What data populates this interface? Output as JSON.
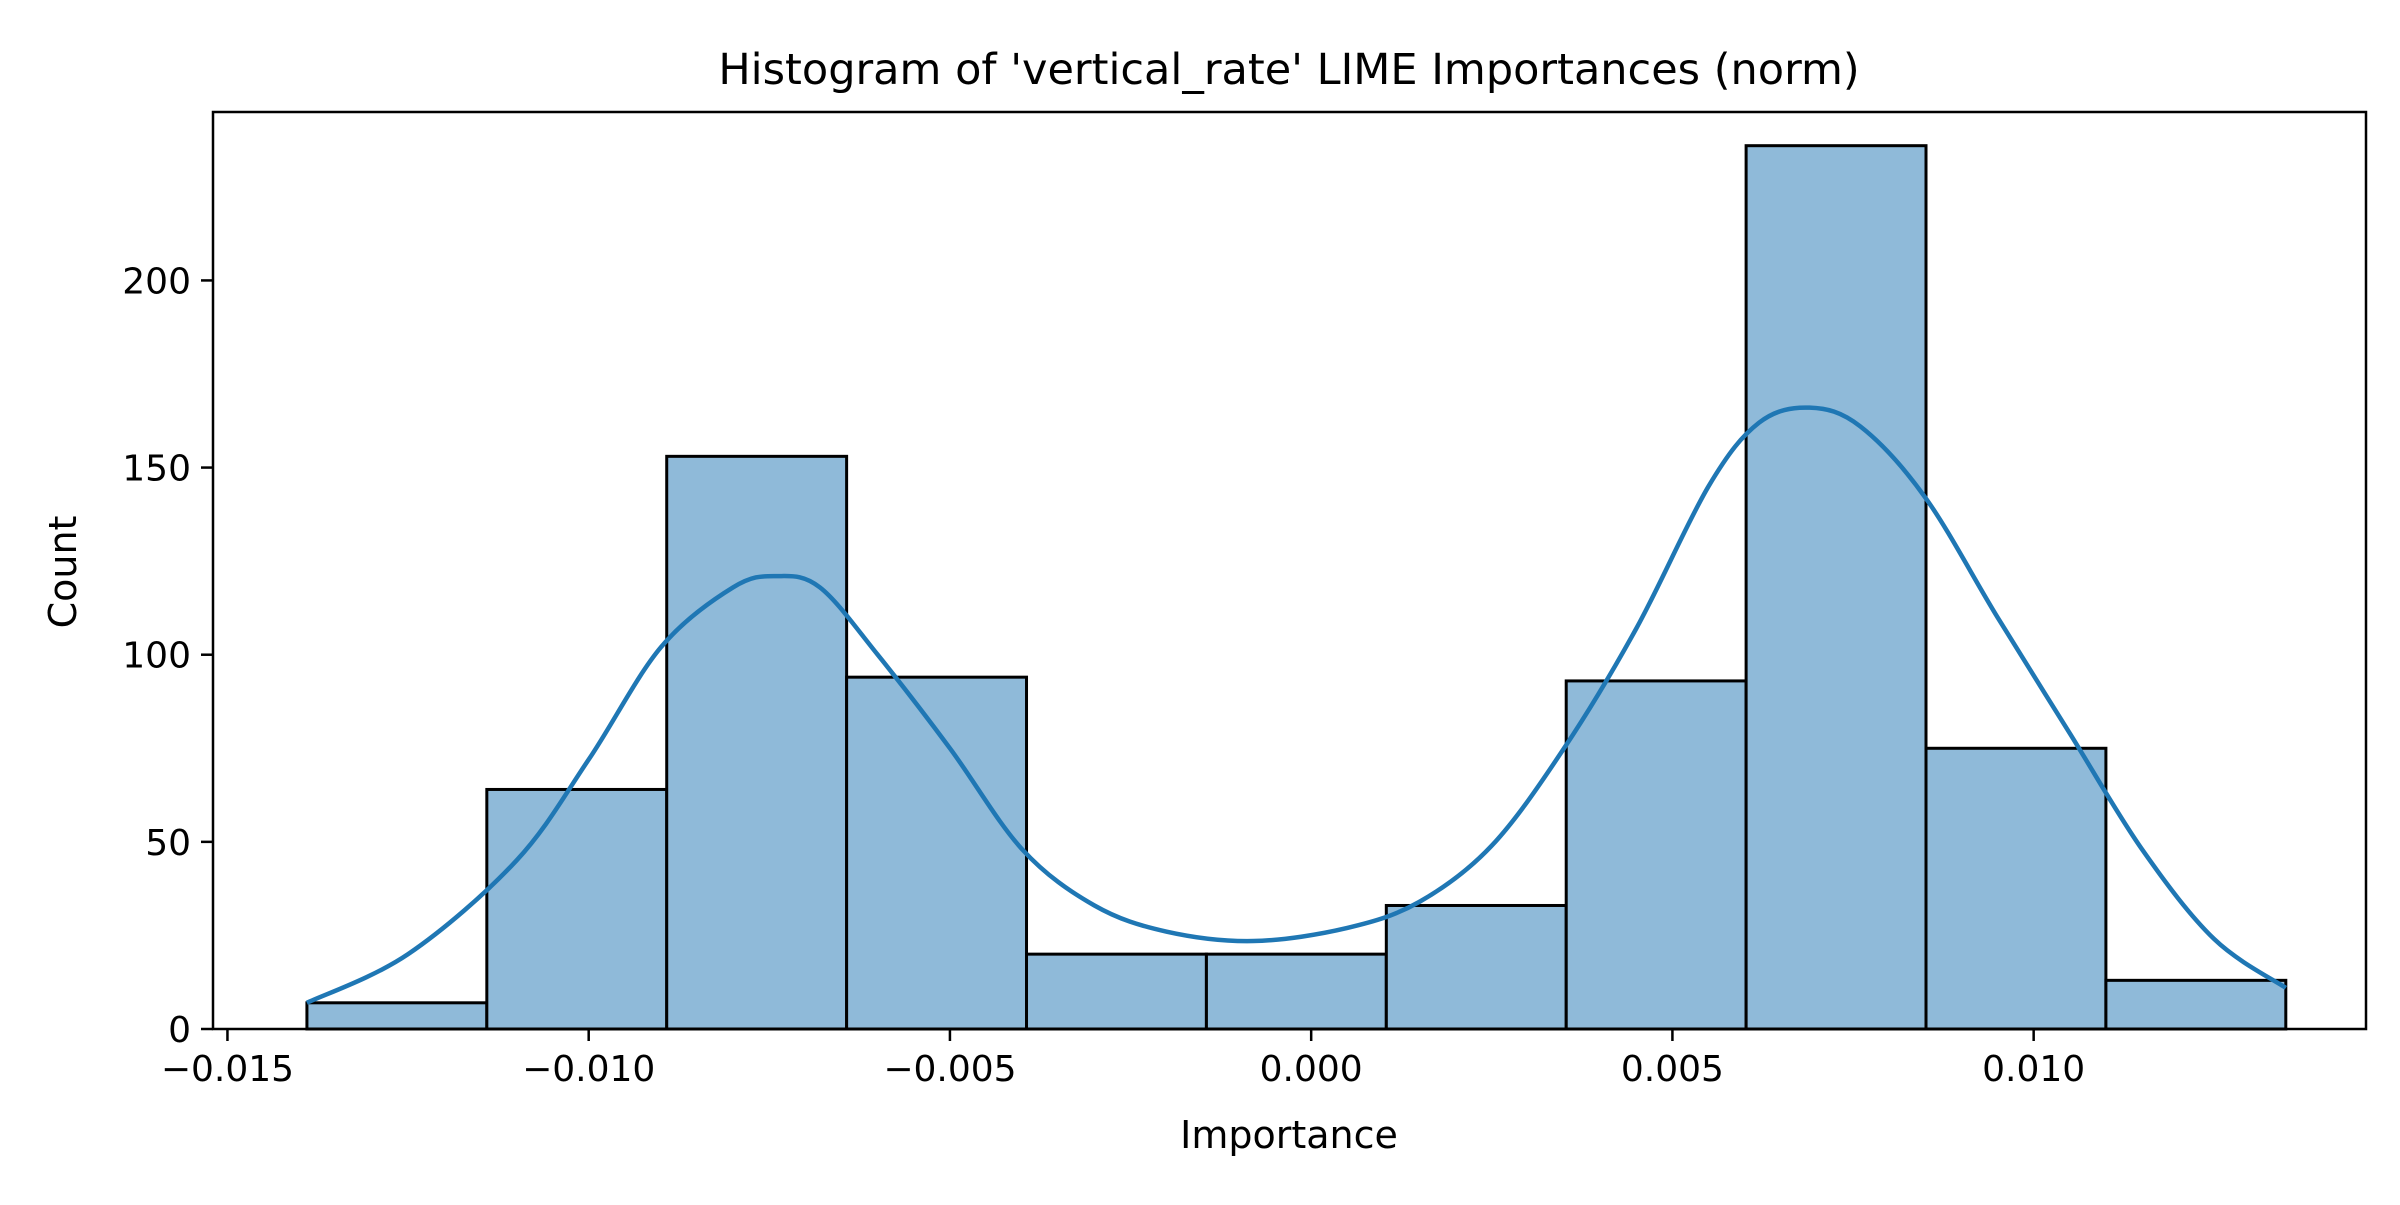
{
  "chart_data": {
    "type": "histogram",
    "title": "Histogram of 'vertical_rate' LIME Importances (norm)",
    "xlabel": "Importance",
    "ylabel": "Count",
    "xlim": [
      -0.0152,
      0.0146
    ],
    "ylim": [
      0,
      245
    ],
    "xticks": [
      -0.015,
      -0.01,
      -0.005,
      0.0,
      0.005,
      0.01
    ],
    "xtick_labels": [
      "−0.015",
      "−0.010",
      "−0.005",
      "0.000",
      "0.005",
      "0.010"
    ],
    "yticks": [
      0,
      50,
      100,
      150,
      200
    ],
    "ytick_labels": [
      "0",
      "50",
      "100",
      "150",
      "200"
    ],
    "bins": [
      {
        "x0": -0.0139,
        "x1": -0.01141,
        "count": 7
      },
      {
        "x0": -0.01141,
        "x1": -0.00892,
        "count": 64
      },
      {
        "x0": -0.00892,
        "x1": -0.00643,
        "count": 153
      },
      {
        "x0": -0.00643,
        "x1": -0.00394,
        "count": 94
      },
      {
        "x0": -0.00394,
        "x1": -0.00145,
        "count": 20
      },
      {
        "x0": -0.00145,
        "x1": 0.00104,
        "count": 20
      },
      {
        "x0": 0.00104,
        "x1": 0.00353,
        "count": 33
      },
      {
        "x0": 0.00353,
        "x1": 0.00602,
        "count": 93
      },
      {
        "x0": 0.00602,
        "x1": 0.00851,
        "count": 236
      },
      {
        "x0": 0.00851,
        "x1": 0.011,
        "count": 75
      },
      {
        "x0": 0.011,
        "x1": 0.01349,
        "count": 13
      }
    ],
    "kde": {
      "x": [
        -0.0139,
        -0.0125,
        -0.011,
        -0.01,
        -0.009,
        -0.008,
        -0.0074,
        -0.0068,
        -0.006,
        -0.005,
        -0.004,
        -0.003,
        -0.002,
        -0.0008,
        0.0005,
        0.0015,
        0.0025,
        0.0035,
        0.0045,
        0.0055,
        0.0062,
        0.0069,
        0.0076,
        0.0085,
        0.0095,
        0.0105,
        0.0115,
        0.0125,
        0.01349
      ],
      "y": [
        7,
        20,
        45,
        72,
        102,
        118,
        121,
        118,
        100,
        75,
        48,
        33,
        26,
        23.5,
        27,
        34,
        49,
        75,
        107,
        145,
        162,
        166,
        161,
        142,
        110,
        79,
        48,
        24,
        11
      ]
    },
    "colors": {
      "bar_fill": "#8fbad9",
      "bar_edge": "#000000",
      "kde_line": "#1f77b4"
    },
    "grid": false,
    "legend": "none"
  }
}
